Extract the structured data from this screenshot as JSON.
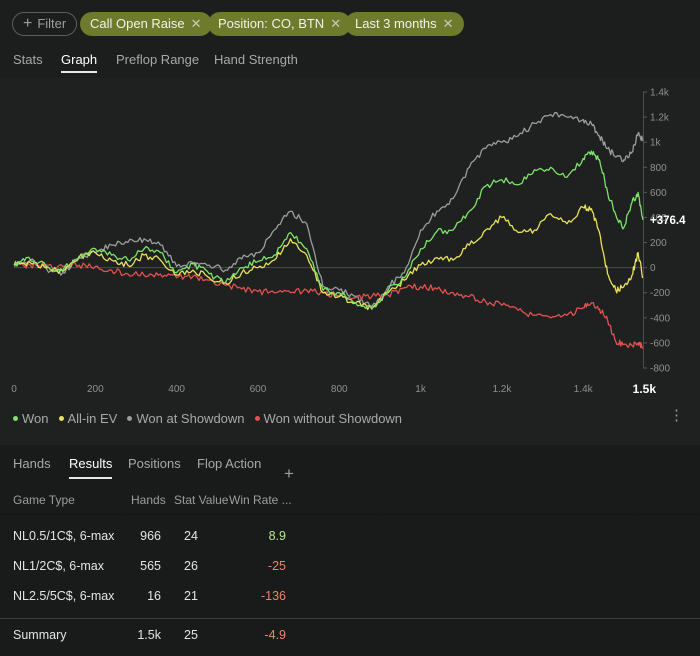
{
  "filters": {
    "add_filter_label": "Filter",
    "chips": [
      "Call Open Raise",
      "Position: CO, BTN",
      "Last 3 months"
    ]
  },
  "view_tabs": [
    "Stats",
    "Graph",
    "Preflop Range",
    "Hand Strength"
  ],
  "active_view_tab": "Graph",
  "chart_data": {
    "type": "line",
    "x_ticks": [
      "0",
      "200",
      "400",
      "600",
      "800",
      "1k",
      "1.2k",
      "1.4k"
    ],
    "x_end_label": "1.5k",
    "xlim": [
      0,
      1547
    ],
    "y_ticks": [
      "1.4k",
      "1.2k",
      "1k",
      "800",
      "600",
      "400",
      "200",
      "0",
      "-200",
      "-400",
      "-600",
      "-800"
    ],
    "ylim": [
      -800,
      1400
    ],
    "current_value_label": "+376.4",
    "grid": false,
    "series": [
      {
        "name": "Won",
        "color": "#7de36a",
        "points": [
          [
            0,
            20
          ],
          [
            30,
            80
          ],
          [
            80,
            10
          ],
          [
            120,
            -20
          ],
          [
            160,
            90
          ],
          [
            200,
            150
          ],
          [
            240,
            100
          ],
          [
            280,
            60
          ],
          [
            320,
            150
          ],
          [
            360,
            120
          ],
          [
            400,
            -40
          ],
          [
            440,
            30
          ],
          [
            480,
            -50
          ],
          [
            520,
            -120
          ],
          [
            560,
            0
          ],
          [
            600,
            50
          ],
          [
            640,
            100
          ],
          [
            680,
            280
          ],
          [
            720,
            150
          ],
          [
            760,
            -180
          ],
          [
            800,
            -200
          ],
          [
            840,
            -280
          ],
          [
            880,
            -330
          ],
          [
            920,
            -180
          ],
          [
            960,
            -80
          ],
          [
            1000,
            150
          ],
          [
            1040,
            290
          ],
          [
            1080,
            300
          ],
          [
            1120,
            450
          ],
          [
            1160,
            650
          ],
          [
            1200,
            700
          ],
          [
            1240,
            660
          ],
          [
            1280,
            780
          ],
          [
            1320,
            800
          ],
          [
            1360,
            720
          ],
          [
            1400,
            870
          ],
          [
            1420,
            930
          ],
          [
            1440,
            860
          ],
          [
            1460,
            600
          ],
          [
            1480,
            420
          ],
          [
            1500,
            320
          ],
          [
            1520,
            520
          ],
          [
            1535,
            600
          ],
          [
            1547,
            380
          ]
        ]
      },
      {
        "name": "All-in EV",
        "color": "#e9e25a",
        "points": [
          [
            0,
            20
          ],
          [
            40,
            40
          ],
          [
            80,
            0
          ],
          [
            120,
            -30
          ],
          [
            160,
            80
          ],
          [
            200,
            120
          ],
          [
            240,
            60
          ],
          [
            280,
            20
          ],
          [
            320,
            100
          ],
          [
            360,
            60
          ],
          [
            400,
            -60
          ],
          [
            440,
            -20
          ],
          [
            480,
            -80
          ],
          [
            520,
            -120
          ],
          [
            560,
            -40
          ],
          [
            600,
            0
          ],
          [
            640,
            60
          ],
          [
            680,
            230
          ],
          [
            720,
            100
          ],
          [
            760,
            -200
          ],
          [
            800,
            -230
          ],
          [
            840,
            -280
          ],
          [
            880,
            -330
          ],
          [
            920,
            -200
          ],
          [
            960,
            -100
          ],
          [
            1000,
            20
          ],
          [
            1040,
            80
          ],
          [
            1080,
            60
          ],
          [
            1120,
            180
          ],
          [
            1160,
            300
          ],
          [
            1200,
            400
          ],
          [
            1240,
            280
          ],
          [
            1280,
            300
          ],
          [
            1320,
            430
          ],
          [
            1360,
            350
          ],
          [
            1400,
            480
          ],
          [
            1420,
            470
          ],
          [
            1440,
            280
          ],
          [
            1460,
            -50
          ],
          [
            1480,
            -180
          ],
          [
            1500,
            -150
          ],
          [
            1520,
            -60
          ],
          [
            1535,
            120
          ],
          [
            1547,
            -80
          ]
        ]
      },
      {
        "name": "Won at Showdown",
        "color": "#9b9d9c",
        "points": [
          [
            0,
            30
          ],
          [
            40,
            60
          ],
          [
            80,
            -10
          ],
          [
            120,
            -40
          ],
          [
            160,
            80
          ],
          [
            200,
            120
          ],
          [
            240,
            180
          ],
          [
            280,
            200
          ],
          [
            320,
            230
          ],
          [
            360,
            180
          ],
          [
            400,
            10
          ],
          [
            440,
            40
          ],
          [
            480,
            20
          ],
          [
            520,
            -20
          ],
          [
            560,
            70
          ],
          [
            600,
            120
          ],
          [
            640,
            300
          ],
          [
            680,
            450
          ],
          [
            720,
            350
          ],
          [
            760,
            -150
          ],
          [
            800,
            -180
          ],
          [
            840,
            -230
          ],
          [
            880,
            -310
          ],
          [
            920,
            -150
          ],
          [
            960,
            -40
          ],
          [
            1000,
            300
          ],
          [
            1040,
            450
          ],
          [
            1080,
            550
          ],
          [
            1120,
            800
          ],
          [
            1160,
            950
          ],
          [
            1200,
            1000
          ],
          [
            1240,
            1050
          ],
          [
            1280,
            1150
          ],
          [
            1320,
            1220
          ],
          [
            1360,
            1200
          ],
          [
            1400,
            1180
          ],
          [
            1420,
            1150
          ],
          [
            1440,
            1050
          ],
          [
            1460,
            950
          ],
          [
            1480,
            880
          ],
          [
            1500,
            860
          ],
          [
            1520,
            920
          ],
          [
            1535,
            1070
          ],
          [
            1547,
            1010
          ]
        ]
      },
      {
        "name": "Won without Showdown",
        "color": "#e0524f",
        "points": [
          [
            0,
            10
          ],
          [
            40,
            20
          ],
          [
            80,
            20
          ],
          [
            120,
            10
          ],
          [
            160,
            20
          ],
          [
            200,
            10
          ],
          [
            240,
            -20
          ],
          [
            280,
            -50
          ],
          [
            320,
            -60
          ],
          [
            360,
            -50
          ],
          [
            400,
            -80
          ],
          [
            440,
            -70
          ],
          [
            480,
            -100
          ],
          [
            520,
            -140
          ],
          [
            560,
            -170
          ],
          [
            600,
            -190
          ],
          [
            640,
            -200
          ],
          [
            680,
            -200
          ],
          [
            720,
            -180
          ],
          [
            760,
            -200
          ],
          [
            800,
            -220
          ],
          [
            840,
            -240
          ],
          [
            880,
            -230
          ],
          [
            920,
            -220
          ],
          [
            960,
            -160
          ],
          [
            1000,
            -150
          ],
          [
            1040,
            -170
          ],
          [
            1080,
            -200
          ],
          [
            1120,
            -230
          ],
          [
            1160,
            -270
          ],
          [
            1200,
            -300
          ],
          [
            1240,
            -340
          ],
          [
            1280,
            -380
          ],
          [
            1320,
            -400
          ],
          [
            1360,
            -380
          ],
          [
            1400,
            -320
          ],
          [
            1420,
            -280
          ],
          [
            1440,
            -330
          ],
          [
            1460,
            -420
          ],
          [
            1480,
            -590
          ],
          [
            1500,
            -610
          ],
          [
            1520,
            -620
          ],
          [
            1535,
            -600
          ],
          [
            1547,
            -640
          ]
        ]
      }
    ]
  },
  "result_tabs": [
    "Hands",
    "Results",
    "Positions",
    "Flop Action"
  ],
  "active_result_tab": "Results",
  "table": {
    "headers": [
      "Game Type",
      "Hands",
      "Stat Value",
      "Win Rate ..."
    ],
    "rows": [
      {
        "game": "NL0.5/1C$, 6-max",
        "hands": "966",
        "stat": "24",
        "rate": "8.9",
        "rate_color": "#b9e98e"
      },
      {
        "game": "NL1/2C$, 6-max",
        "hands": "565",
        "stat": "26",
        "rate": "-25",
        "rate_color": "#e8876a"
      },
      {
        "game": "NL2.5/5C$, 6-max",
        "hands": "16",
        "stat": "21",
        "rate": "-136",
        "rate_color": "#e8876a"
      }
    ],
    "summary": {
      "game": "Summary",
      "hands": "1.5k",
      "stat": "25",
      "rate": "-4.9",
      "rate_color": "#e8876a"
    }
  }
}
